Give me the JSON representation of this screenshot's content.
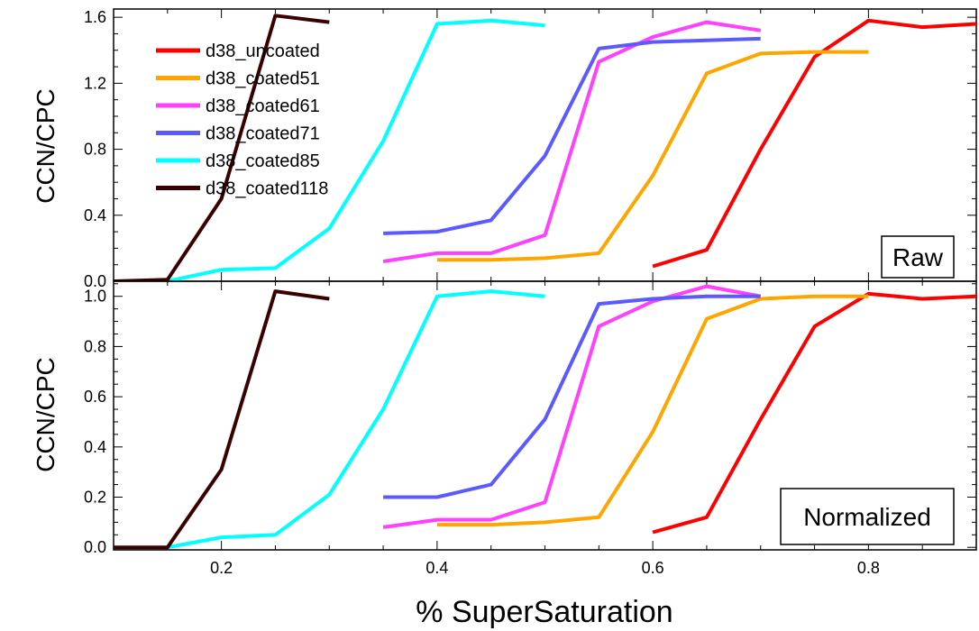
{
  "chart_data": [
    {
      "type": "line",
      "panel": "top",
      "tag": "Raw",
      "ylabel": "CCN/CPC",
      "xlabel": "",
      "xlim": [
        0.1,
        0.9
      ],
      "ylim": [
        0.0,
        1.65
      ],
      "xticks": [
        0.2,
        0.4,
        0.6,
        0.8
      ],
      "yticks": [
        0.0,
        0.4,
        0.8,
        1.2,
        1.6
      ],
      "ytick_labels": [
        "0.0",
        "0.4",
        "0.8",
        "1.2",
        "1.6"
      ],
      "legend_position": "top-left",
      "series": [
        {
          "name": "d38_uncoated",
          "color": "#ff0000",
          "x": [
            0.6,
            0.65,
            0.7,
            0.75,
            0.8,
            0.85,
            0.9
          ],
          "y": [
            0.09,
            0.19,
            0.8,
            1.36,
            1.58,
            1.54,
            1.56
          ]
        },
        {
          "name": "d38_coated51",
          "color": "#ffa500",
          "x": [
            0.4,
            0.45,
            0.5,
            0.55,
            0.6,
            0.65,
            0.7,
            0.75,
            0.8
          ],
          "y": [
            0.13,
            0.13,
            0.14,
            0.17,
            0.64,
            1.26,
            1.38,
            1.39,
            1.39
          ]
        },
        {
          "name": "d38_coated61",
          "color": "#ff40ff",
          "x": [
            0.35,
            0.4,
            0.45,
            0.5,
            0.55,
            0.6,
            0.65,
            0.7
          ],
          "y": [
            0.12,
            0.17,
            0.17,
            0.28,
            1.33,
            1.48,
            1.57,
            1.52
          ]
        },
        {
          "name": "d38_coated71",
          "color": "#5a5aff",
          "x": [
            0.35,
            0.4,
            0.45,
            0.5,
            0.55,
            0.6,
            0.65,
            0.7
          ],
          "y": [
            0.29,
            0.3,
            0.37,
            0.76,
            1.41,
            1.45,
            1.46,
            1.47
          ]
        },
        {
          "name": "d38_coated85",
          "color": "#00ffff",
          "x": [
            0.15,
            0.2,
            0.25,
            0.3,
            0.35,
            0.4,
            0.45,
            0.5
          ],
          "y": [
            0.0,
            0.07,
            0.08,
            0.32,
            0.85,
            1.56,
            1.58,
            1.55
          ]
        },
        {
          "name": "d38_coated118",
          "color": "#3a0000",
          "x": [
            0.1,
            0.15,
            0.2,
            0.25,
            0.3
          ],
          "y": [
            0.0,
            0.01,
            0.5,
            1.61,
            1.57
          ]
        }
      ]
    },
    {
      "type": "line",
      "panel": "bottom",
      "tag": "Normalized",
      "ylabel": "CCN/CPC",
      "xlabel": "% SuperSaturation",
      "xlim": [
        0.1,
        0.9
      ],
      "ylim": [
        -0.01,
        1.06
      ],
      "xticks": [
        0.2,
        0.4,
        0.6,
        0.8
      ],
      "xtick_labels": [
        "0.2",
        "0.4",
        "0.6",
        "0.8"
      ],
      "yticks": [
        0.0,
        0.2,
        0.4,
        0.6,
        0.8,
        1.0
      ],
      "ytick_labels": [
        "0.0",
        "0.2",
        "0.4",
        "0.6",
        "0.8",
        "1.0"
      ],
      "series": [
        {
          "name": "d38_uncoated",
          "color": "#ff0000",
          "x": [
            0.6,
            0.65,
            0.7,
            0.75,
            0.8,
            0.85,
            0.9
          ],
          "y": [
            0.06,
            0.12,
            0.51,
            0.88,
            1.01,
            0.99,
            1.0
          ]
        },
        {
          "name": "d38_coated51",
          "color": "#ffa500",
          "x": [
            0.4,
            0.45,
            0.5,
            0.55,
            0.6,
            0.65,
            0.7,
            0.75,
            0.8
          ],
          "y": [
            0.09,
            0.09,
            0.1,
            0.12,
            0.46,
            0.91,
            0.99,
            1.0,
            1.0
          ]
        },
        {
          "name": "d38_coated61",
          "color": "#ff40ff",
          "x": [
            0.35,
            0.4,
            0.45,
            0.5,
            0.55,
            0.6,
            0.65,
            0.7
          ],
          "y": [
            0.08,
            0.11,
            0.11,
            0.18,
            0.88,
            0.98,
            1.04,
            1.0
          ]
        },
        {
          "name": "d38_coated71",
          "color": "#5a5aff",
          "x": [
            0.35,
            0.4,
            0.45,
            0.5,
            0.55,
            0.6,
            0.65,
            0.7
          ],
          "y": [
            0.2,
            0.2,
            0.25,
            0.51,
            0.97,
            0.99,
            1.0,
            1.0
          ]
        },
        {
          "name": "d38_coated85",
          "color": "#00ffff",
          "x": [
            0.15,
            0.2,
            0.25,
            0.3,
            0.35,
            0.4,
            0.45,
            0.5
          ],
          "y": [
            0.0,
            0.04,
            0.05,
            0.21,
            0.55,
            1.0,
            1.02,
            1.0
          ]
        },
        {
          "name": "d38_coated118",
          "color": "#3a0000",
          "x": [
            0.1,
            0.15,
            0.2,
            0.25,
            0.3
          ],
          "y": [
            0.0,
            0.0,
            0.31,
            1.02,
            0.99
          ]
        }
      ]
    }
  ]
}
